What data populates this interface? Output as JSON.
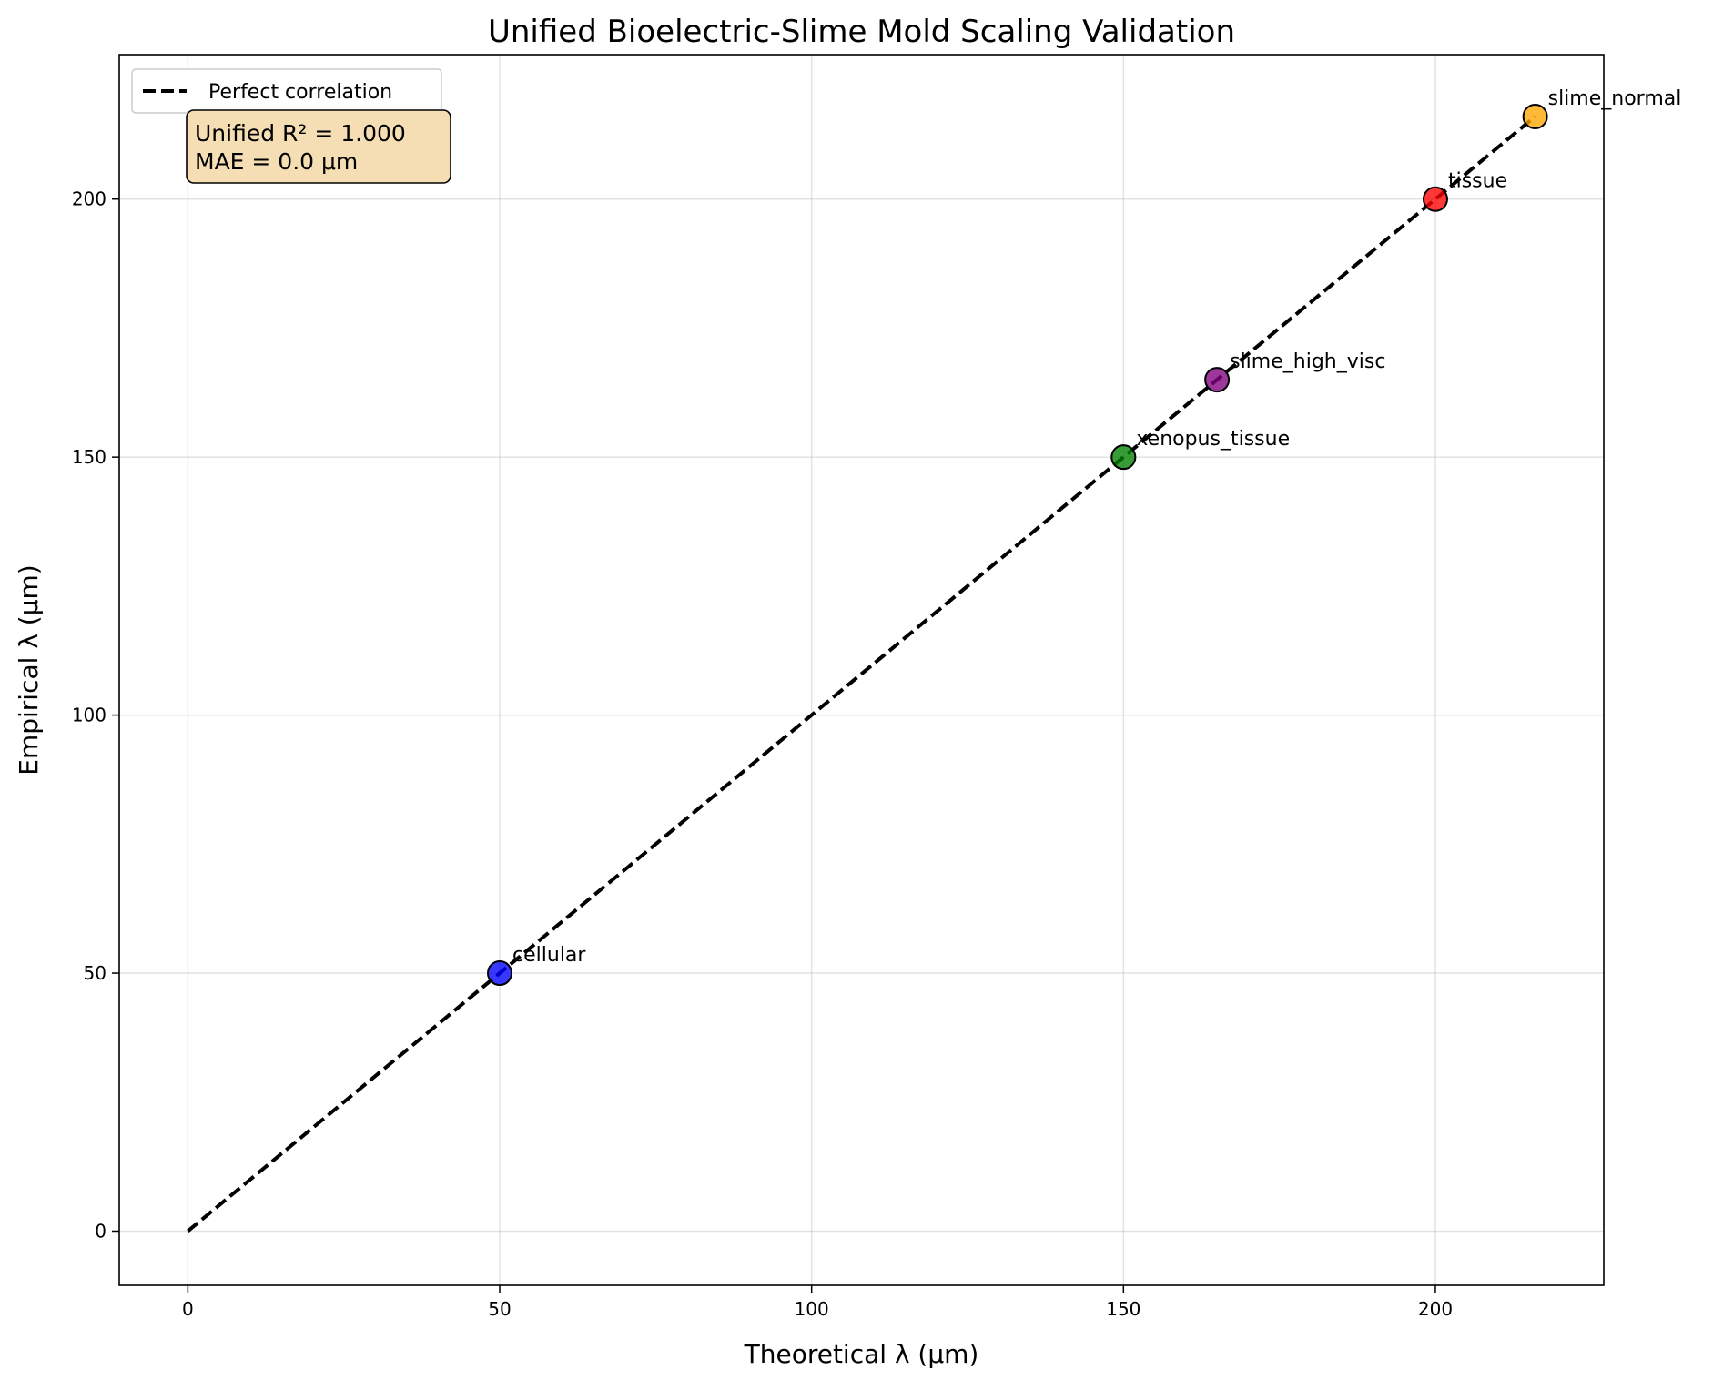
{
  "chart_data": {
    "type": "scatter",
    "title": "Unified Bioelectric-Slime Mold Scaling Validation",
    "xlabel": "Theoretical λ (μm)",
    "ylabel": "Empirical λ (μm)",
    "xlim": [
      -11,
      227
    ],
    "ylim": [
      -10.5,
      228
    ],
    "xticks": [
      0,
      50,
      100,
      150,
      200
    ],
    "yticks": [
      0,
      50,
      100,
      150,
      200
    ],
    "grid": true,
    "points": [
      {
        "label": "cellular",
        "x": 50,
        "y": 50,
        "color": "#0000ff"
      },
      {
        "label": "xenopus_tissue",
        "x": 150,
        "y": 150,
        "color": "#008000"
      },
      {
        "label": "slime_high_visc",
        "x": 165,
        "y": 165,
        "color": "#800080"
      },
      {
        "label": "tissue",
        "x": 200,
        "y": 200,
        "color": "#ff0000"
      },
      {
        "label": "slime_normal",
        "x": 216,
        "y": 216,
        "color": "#ffa500"
      }
    ],
    "reference_line": {
      "label": "Perfect correlation",
      "x": [
        0,
        216
      ],
      "y": [
        0,
        216
      ],
      "style": "dashed",
      "color": "#000000"
    },
    "legend": {
      "position": "top-left",
      "entries": [
        "Perfect correlation"
      ]
    },
    "stats_box": {
      "lines": [
        "Unified R² = 1.000",
        "MAE = 0.0 μm"
      ],
      "background": "#f5deb3"
    }
  }
}
